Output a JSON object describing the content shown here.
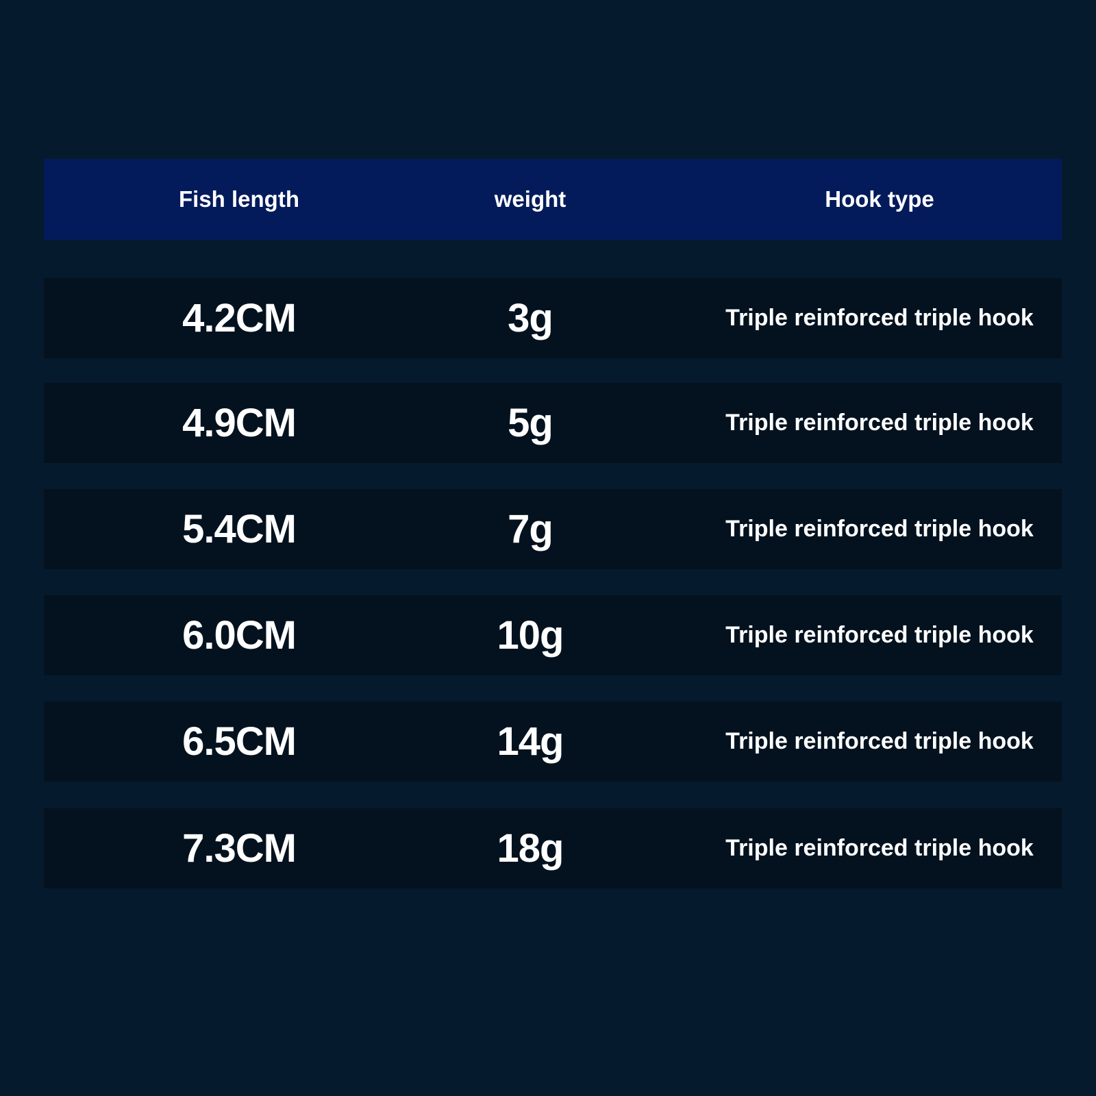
{
  "table": {
    "headers": [
      "Fish length",
      "weight",
      "Hook type"
    ],
    "rows": [
      [
        "4.2CM",
        "3g",
        "Triple reinforced triple hook"
      ],
      [
        "4.9CM",
        "5g",
        "Triple reinforced triple hook"
      ],
      [
        "5.4CM",
        "7g",
        "Triple reinforced triple hook"
      ],
      [
        "6.0CM",
        "10g",
        "Triple reinforced triple hook"
      ],
      [
        "6.5CM",
        "14g",
        "Triple reinforced triple hook"
      ],
      [
        "7.3CM",
        "18g",
        "Triple reinforced triple hook"
      ]
    ]
  },
  "colors": {
    "background": "#061a2e",
    "header": "#031b5b",
    "row": "#04121f",
    "text": "#ffffff"
  }
}
